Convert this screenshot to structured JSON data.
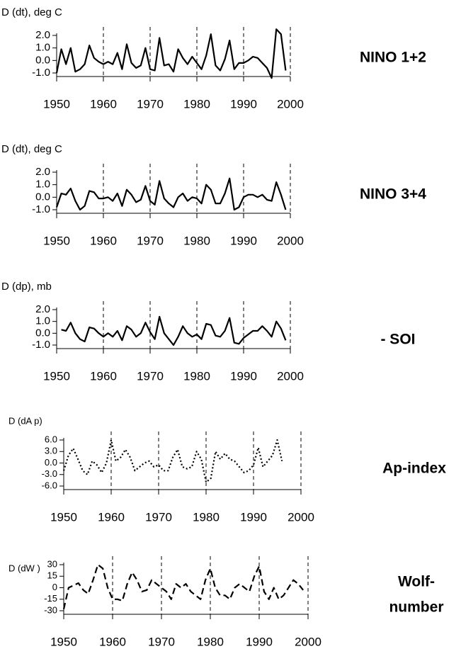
{
  "chart_data": [
    {
      "type": "line",
      "ylabel": "D (dt), deg C",
      "annotation": [
        "NINO 1+2"
      ],
      "line_style": "solid",
      "color": "#000000",
      "x": [
        1950,
        1951,
        1952,
        1953,
        1954,
        1955,
        1956,
        1957,
        1958,
        1959,
        1960,
        1961,
        1962,
        1963,
        1964,
        1965,
        1966,
        1967,
        1968,
        1969,
        1970,
        1971,
        1972,
        1973,
        1974,
        1975,
        1976,
        1977,
        1978,
        1979,
        1980,
        1981,
        1982,
        1983,
        1984,
        1985,
        1986,
        1987,
        1988,
        1989,
        1990,
        1991,
        1992,
        1993,
        1994,
        1995,
        1996,
        1997,
        1998,
        1999
      ],
      "values": [
        -1.0,
        0.9,
        -0.3,
        1.0,
        -0.9,
        -0.7,
        -0.3,
        1.2,
        0.2,
        -0.1,
        -0.3,
        -0.1,
        -0.3,
        0.6,
        -0.7,
        1.3,
        -0.2,
        -0.6,
        -0.4,
        1.0,
        -0.7,
        -0.8,
        1.8,
        -0.4,
        -0.3,
        -0.9,
        0.9,
        0.2,
        -0.3,
        0.3,
        -0.2,
        -0.7,
        0.4,
        2.1,
        -0.4,
        -0.8,
        0.1,
        1.6,
        -0.7,
        -0.2,
        -0.2,
        0.0,
        0.3,
        0.2,
        -0.2,
        -0.6,
        -1.4,
        2.5,
        2.1,
        -0.8
      ],
      "xlim": [
        1950,
        2000
      ],
      "xticks": [
        1950,
        1960,
        1970,
        1980,
        1990,
        2000
      ],
      "vlines": [
        1960,
        1970,
        1980,
        1990,
        2000
      ],
      "ylim": [
        -1.0,
        2.0
      ],
      "yticks": [
        {
          "value": 2,
          "label": "2.0"
        },
        {
          "value": 1,
          "label": "1.0"
        },
        {
          "value": 0,
          "label": "0.0"
        },
        {
          "value": -1,
          "label": "-1.0"
        }
      ]
    },
    {
      "type": "line",
      "ylabel": "D (dt), deg C",
      "annotation": [
        "NINO 3+4"
      ],
      "line_style": "solid",
      "color": "#000000",
      "x": [
        1950,
        1951,
        1952,
        1953,
        1954,
        1955,
        1956,
        1957,
        1958,
        1959,
        1960,
        1961,
        1962,
        1963,
        1964,
        1965,
        1966,
        1967,
        1968,
        1969,
        1970,
        1971,
        1972,
        1973,
        1974,
        1975,
        1976,
        1977,
        1978,
        1979,
        1980,
        1981,
        1982,
        1983,
        1984,
        1985,
        1986,
        1987,
        1988,
        1989,
        1990,
        1991,
        1992,
        1993,
        1994,
        1995,
        1996,
        1997,
        1998,
        1999
      ],
      "values": [
        -0.8,
        0.3,
        0.2,
        0.7,
        -0.3,
        -1.0,
        -0.7,
        0.5,
        0.4,
        -0.1,
        -0.1,
        0.0,
        -0.3,
        0.3,
        -0.7,
        0.6,
        0.2,
        -0.4,
        -0.2,
        0.9,
        -0.3,
        -0.6,
        1.3,
        -0.1,
        -0.5,
        -0.8,
        0.0,
        0.3,
        -0.3,
        0.0,
        -0.1,
        -0.5,
        1.0,
        0.6,
        -0.5,
        -0.5,
        0.3,
        1.5,
        -1.0,
        -0.8,
        0.0,
        0.2,
        0.2,
        0.0,
        0.2,
        -0.2,
        -0.3,
        1.2,
        0.2,
        -1.0
      ],
      "xlim": [
        1950,
        2000
      ],
      "xticks": [
        1950,
        1960,
        1970,
        1980,
        1990,
        2000
      ],
      "vlines": [
        1960,
        1970,
        1980,
        1990,
        2000
      ],
      "ylim": [
        -1.0,
        2.0
      ],
      "yticks": [
        {
          "value": 2,
          "label": "2.0"
        },
        {
          "value": 1,
          "label": "1.0"
        },
        {
          "value": 0,
          "label": "0.0"
        },
        {
          "value": -1,
          "label": "-1.0"
        }
      ]
    },
    {
      "type": "line",
      "ylabel": "D (dp), mb",
      "annotation": [
        "- SOI"
      ],
      "line_style": "solid",
      "color": "#000000",
      "x": [
        1951,
        1952,
        1953,
        1954,
        1955,
        1956,
        1957,
        1958,
        1959,
        1960,
        1961,
        1962,
        1963,
        1964,
        1965,
        1966,
        1967,
        1968,
        1969,
        1970,
        1971,
        1972,
        1973,
        1974,
        1975,
        1976,
        1977,
        1978,
        1979,
        1980,
        1981,
        1982,
        1983,
        1984,
        1985,
        1986,
        1987,
        1988,
        1989,
        1990,
        1991,
        1992,
        1993,
        1994,
        1995,
        1996,
        1997,
        1998,
        1999
      ],
      "values": [
        0.3,
        0.2,
        0.9,
        0.0,
        -0.5,
        -0.7,
        0.5,
        0.4,
        0.0,
        -0.3,
        0.0,
        -0.3,
        0.2,
        -0.6,
        0.6,
        0.3,
        -0.3,
        0.0,
        0.9,
        0.1,
        -0.5,
        1.4,
        0.0,
        -0.5,
        -1.0,
        -0.3,
        0.6,
        0.0,
        -0.3,
        -0.1,
        -0.5,
        0.8,
        0.7,
        -0.2,
        -0.3,
        0.2,
        1.3,
        -0.8,
        -0.9,
        -0.4,
        -0.1,
        0.2,
        0.2,
        0.6,
        0.2,
        -0.3,
        1.0,
        0.4,
        -0.6
      ],
      "xlim": [
        1950,
        2000
      ],
      "xticks": [
        1950,
        1960,
        1970,
        1980,
        1990,
        2000
      ],
      "vlines": [
        1960,
        1970,
        1980,
        1990,
        2000
      ],
      "ylim": [
        -1.0,
        2.0
      ],
      "yticks": [
        {
          "value": 2,
          "label": "2.0"
        },
        {
          "value": 1,
          "label": "1.0"
        },
        {
          "value": 0,
          "label": "0.0"
        },
        {
          "value": -1,
          "label": "-1.0"
        }
      ]
    },
    {
      "type": "line",
      "ylabel": "D (dA p)",
      "annotation": [
        "Ap-index"
      ],
      "line_style": "dotted",
      "color": "#000000",
      "x": [
        1950,
        1951,
        1952,
        1953,
        1954,
        1955,
        1956,
        1957,
        1958,
        1959,
        1960,
        1961,
        1962,
        1963,
        1964,
        1965,
        1966,
        1967,
        1968,
        1969,
        1970,
        1971,
        1972,
        1973,
        1974,
        1975,
        1976,
        1977,
        1978,
        1979,
        1980,
        1981,
        1982,
        1983,
        1984,
        1985,
        1986,
        1987,
        1988,
        1989,
        1990,
        1991,
        1992,
        1993,
        1994,
        1995,
        1996
      ],
      "values": [
        -2,
        2,
        3.8,
        1,
        -2,
        -3,
        0.5,
        -0.5,
        -2.5,
        0,
        6,
        0.5,
        1.5,
        3.5,
        1.5,
        -2,
        -1,
        0,
        0.5,
        -1,
        -0.5,
        -2,
        -2,
        1.5,
        3.5,
        -1,
        -1.5,
        -1,
        3,
        1,
        -5,
        -4,
        3,
        1,
        2.5,
        1,
        0.5,
        -1,
        -2.5,
        -2,
        -0.5,
        4,
        -1,
        0.5,
        2,
        6,
        0.5
      ],
      "xlim": [
        1950,
        2000
      ],
      "xticks": [
        1950,
        1960,
        1970,
        1980,
        1990,
        2000
      ],
      "vlines": [
        1960,
        1970,
        1980,
        1990,
        2000
      ],
      "ylim": [
        -6.0,
        6.0
      ],
      "yticks": [
        {
          "value": 6,
          "label": "6.0"
        },
        {
          "value": 3,
          "label": "3.0"
        },
        {
          "value": 0,
          "label": "0.0"
        },
        {
          "value": -3,
          "label": "-3.0"
        },
        {
          "value": -6,
          "label": "-6.0"
        }
      ]
    },
    {
      "type": "line",
      "ylabel": "D (dW )",
      "annotation": [
        "Wolf-",
        "number"
      ],
      "line_style": "dashed",
      "color": "#000000",
      "x": [
        1950,
        1951,
        1952,
        1953,
        1954,
        1955,
        1956,
        1957,
        1958,
        1959,
        1960,
        1961,
        1962,
        1963,
        1964,
        1965,
        1966,
        1967,
        1968,
        1969,
        1970,
        1971,
        1972,
        1973,
        1974,
        1975,
        1976,
        1977,
        1978,
        1979,
        1980,
        1981,
        1982,
        1983,
        1984,
        1985,
        1986,
        1987,
        1988,
        1989,
        1990,
        1991,
        1992,
        1993,
        1994,
        1995,
        1996,
        1997,
        1998,
        1999
      ],
      "values": [
        -28,
        0,
        3,
        6,
        -3,
        -8,
        10,
        30,
        25,
        0,
        -15,
        -15,
        -17,
        5,
        20,
        10,
        -5,
        -3,
        10,
        5,
        0,
        -5,
        -15,
        5,
        0,
        5,
        -5,
        -10,
        -15,
        10,
        25,
        0,
        -10,
        -10,
        -15,
        0,
        5,
        0,
        -5,
        15,
        28,
        -5,
        -15,
        0,
        -15,
        -10,
        0,
        10,
        5,
        -3
      ],
      "xlim": [
        1950,
        2000
      ],
      "xticks": [
        1950,
        1960,
        1970,
        1980,
        1990,
        2000
      ],
      "vlines": [
        1960,
        1970,
        1980,
        1990,
        2000
      ],
      "ylim": [
        -30,
        30
      ],
      "yticks": [
        30,
        15,
        0,
        -15,
        -30
      ]
    }
  ]
}
